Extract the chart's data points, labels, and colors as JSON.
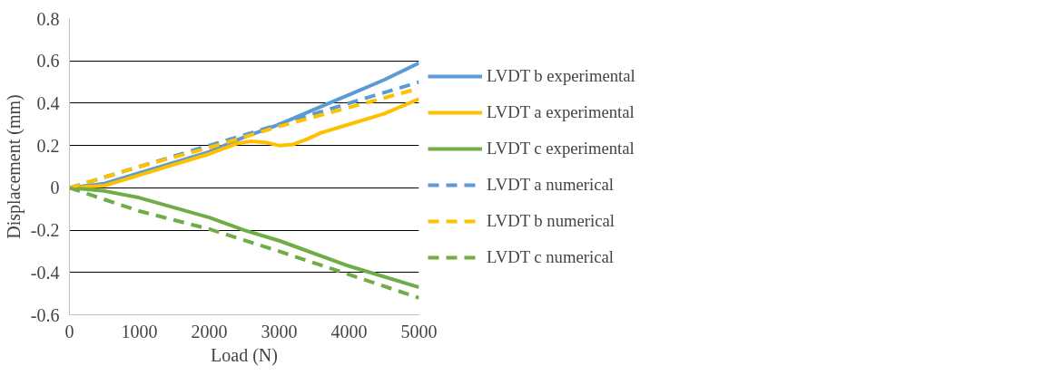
{
  "chart_data": {
    "type": "line",
    "xlabel": "Load (N)",
    "ylabel": "Displacement (mm)",
    "xlim": [
      0,
      5000
    ],
    "xticks": [
      0,
      1000,
      2000,
      3000,
      4000,
      5000
    ],
    "ylim": [
      -0.6,
      0.8
    ],
    "yticks": [
      -0.6,
      -0.4,
      -0.2,
      0,
      0.2,
      0.4,
      0.6,
      0.8
    ],
    "grid": "y",
    "legend": "right",
    "marker": "none",
    "series": [
      {
        "name": "LVDT b experimental",
        "color": "#5b9bd5",
        "line_style": "solid",
        "x": [
          0,
          500,
          1000,
          1500,
          2000,
          2500,
          3000,
          3500,
          4000,
          4500,
          5000
        ],
        "values": [
          0,
          0.02,
          0.07,
          0.12,
          0.17,
          0.24,
          0.3,
          0.37,
          0.44,
          0.51,
          0.59
        ]
      },
      {
        "name": "LVDT a experimental",
        "color": "#ffc000",
        "line_style": "solid",
        "x": [
          0,
          500,
          1000,
          1500,
          2000,
          2400,
          2600,
          2800,
          3000,
          3200,
          3400,
          3600,
          4000,
          4500,
          5000
        ],
        "values": [
          0,
          0.01,
          0.06,
          0.11,
          0.16,
          0.21,
          0.22,
          0.215,
          0.2,
          0.205,
          0.23,
          0.26,
          0.3,
          0.35,
          0.42
        ]
      },
      {
        "name": "LVDT c experimental",
        "color": "#70ad47",
        "line_style": "solid",
        "x": [
          0,
          500,
          1000,
          2000,
          2500,
          3000,
          4000,
          5000
        ],
        "values": [
          0,
          -0.015,
          -0.047,
          -0.14,
          -0.2,
          -0.25,
          -0.37,
          -0.47
        ]
      },
      {
        "name": "LVDT a numerical",
        "color": "#5b9bd5",
        "line_style": "dashed",
        "x": [
          0,
          1000,
          2000,
          3000,
          4000,
          5000
        ],
        "values": [
          0,
          0.1,
          0.2,
          0.3,
          0.4,
          0.5
        ]
      },
      {
        "name": "LVDT b numerical",
        "color": "#ffc000",
        "line_style": "dashed",
        "x": [
          0,
          1000,
          2000,
          3000,
          4000,
          5000
        ],
        "values": [
          0,
          0.1,
          0.19,
          0.29,
          0.38,
          0.47
        ]
      },
      {
        "name": "LVDT c numerical",
        "color": "#70ad47",
        "line_style": "dashed",
        "x": [
          0,
          1000,
          2000,
          3000,
          4000,
          5000
        ],
        "values": [
          0,
          -0.11,
          -0.195,
          -0.3,
          -0.41,
          -0.52
        ]
      }
    ]
  }
}
